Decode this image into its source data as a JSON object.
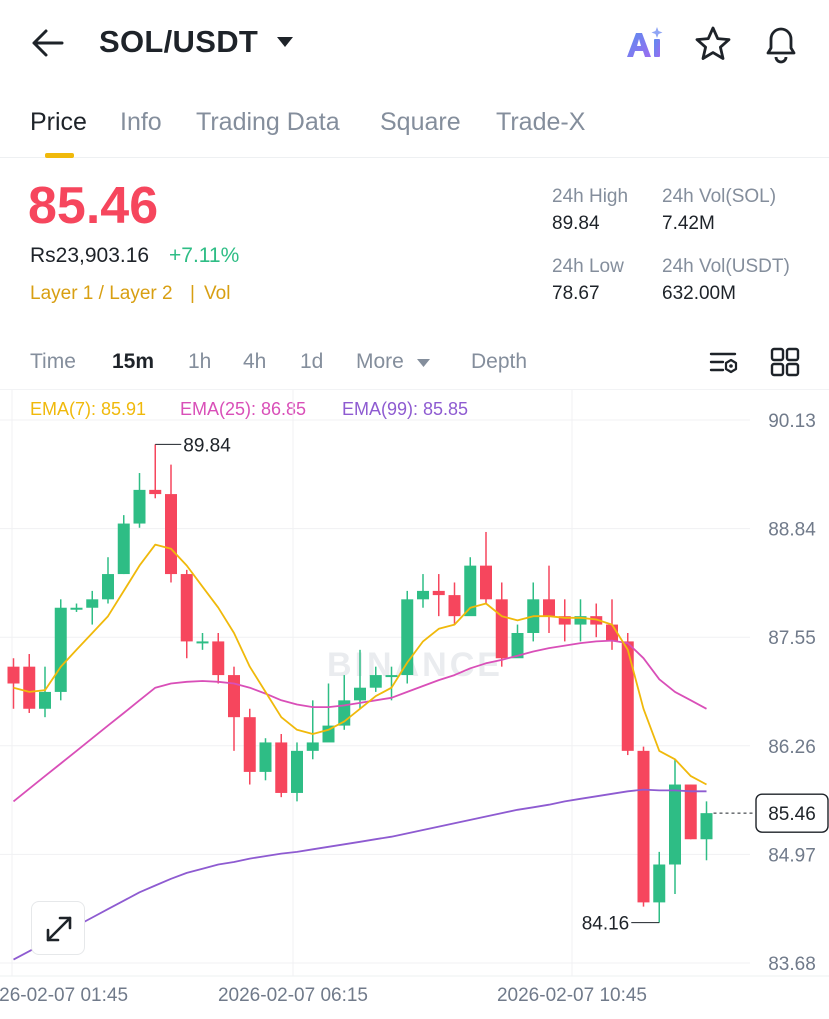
{
  "header": {
    "pair": "SOL/USDT",
    "icons": [
      "arrow-left-icon",
      "caret-down-icon",
      "ai-icon",
      "star-icon",
      "bell-icon"
    ]
  },
  "tabs": [
    {
      "label": "Price",
      "active": true
    },
    {
      "label": "Info",
      "active": false
    },
    {
      "label": "Trading Data",
      "active": false
    },
    {
      "label": "Square",
      "active": false
    },
    {
      "label": "Trade-X",
      "active": false
    }
  ],
  "price": {
    "last": "85.46",
    "fiat": "Rs23,903.16",
    "change": "+7.11%",
    "tag_layer": "Layer 1 / Layer 2",
    "tag_sep": "|",
    "tag_vol": "Vol"
  },
  "stats": {
    "high_label": "24h High",
    "high_value": "89.84",
    "vol_base_label": "24h Vol(SOL)",
    "vol_base_value": "7.42M",
    "low_label": "24h Low",
    "low_value": "78.67",
    "vol_quote_label": "24h Vol(USDT)",
    "vol_quote_value": "632.00M"
  },
  "intervals": [
    {
      "label": "Time",
      "active": false
    },
    {
      "label": "15m",
      "active": true
    },
    {
      "label": "1h",
      "active": false
    },
    {
      "label": "4h",
      "active": false
    },
    {
      "label": "1d",
      "active": false
    },
    {
      "label": "More",
      "active": false
    },
    {
      "label": "Depth",
      "active": false
    }
  ],
  "ema": {
    "ema7": "EMA(7): 85.91",
    "ema25": "EMA(25): 86.85",
    "ema99": "EMA(99): 85.85"
  },
  "colors": {
    "up": "#2ebd85",
    "down": "#f6465d",
    "accent": "#f0b90b",
    "ema7": "#f0b90b",
    "ema25": "#d94fb8",
    "ema99": "#8e5bd1",
    "ai": "#7b68ee"
  },
  "chart_data": {
    "type": "candlestick",
    "interval": "15m",
    "y_ticks": [
      "90.13",
      "88.84",
      "87.55",
      "86.26",
      "84.97",
      "83.68"
    ],
    "y_values": [
      90.13,
      88.84,
      87.55,
      86.26,
      84.97,
      83.68
    ],
    "ylim": [
      83.68,
      90.13
    ],
    "x_ticks": [
      "2026-02-07 01:45",
      "2026-02-07 06:15",
      "2026-02-07 10:45"
    ],
    "high_marker": "89.84",
    "low_marker": "84.16",
    "last_marker": "85.46",
    "watermark": "BINANCE",
    "candles": [
      [
        87.2,
        87.0,
        87.3,
        86.7
      ],
      [
        87.2,
        86.7,
        87.35,
        86.65
      ],
      [
        86.7,
        86.9,
        87.2,
        86.6
      ],
      [
        86.9,
        87.9,
        88.0,
        86.8
      ],
      [
        87.9,
        87.9,
        87.95,
        87.85
      ],
      [
        87.9,
        88.0,
        88.1,
        87.7
      ],
      [
        88.0,
        88.3,
        88.5,
        87.95
      ],
      [
        88.3,
        88.9,
        89.0,
        88.3
      ],
      [
        88.9,
        89.3,
        89.5,
        88.85
      ],
      [
        89.3,
        89.25,
        89.84,
        89.2
      ],
      [
        89.25,
        88.3,
        89.6,
        88.2
      ],
      [
        88.3,
        87.5,
        88.35,
        87.3
      ],
      [
        87.5,
        87.5,
        87.6,
        87.4
      ],
      [
        87.5,
        87.1,
        87.6,
        87.0
      ],
      [
        87.1,
        86.6,
        87.2,
        86.2
      ],
      [
        86.6,
        85.95,
        86.7,
        85.8
      ],
      [
        85.95,
        86.3,
        86.35,
        85.85
      ],
      [
        86.3,
        85.7,
        86.4,
        85.65
      ],
      [
        85.7,
        86.2,
        86.3,
        85.6
      ],
      [
        86.2,
        86.3,
        86.8,
        86.1
      ],
      [
        86.3,
        86.5,
        87.0,
        86.35
      ],
      [
        86.5,
        86.8,
        87.1,
        86.45
      ],
      [
        86.8,
        86.95,
        87.4,
        86.7
      ],
      [
        86.95,
        87.1,
        87.2,
        86.9
      ],
      [
        87.1,
        87.1,
        87.2,
        86.8
      ],
      [
        87.1,
        88.0,
        88.1,
        87.0
      ],
      [
        88.0,
        88.1,
        88.3,
        87.9
      ],
      [
        88.1,
        88.05,
        88.3,
        87.8
      ],
      [
        88.05,
        87.8,
        88.2,
        87.7
      ],
      [
        87.8,
        88.4,
        88.5,
        87.9
      ],
      [
        88.4,
        88.0,
        88.8,
        87.95
      ],
      [
        88.0,
        87.3,
        88.2,
        87.2
      ],
      [
        87.3,
        87.6,
        87.7,
        87.35
      ],
      [
        87.6,
        88.0,
        88.2,
        87.5
      ],
      [
        88.0,
        87.8,
        88.4,
        87.6
      ],
      [
        87.8,
        87.7,
        88.0,
        87.5
      ],
      [
        87.7,
        87.8,
        88.0,
        87.5
      ],
      [
        87.8,
        87.7,
        87.95,
        87.55
      ],
      [
        87.7,
        87.5,
        88.0,
        87.4
      ],
      [
        87.5,
        86.2,
        87.6,
        86.15
      ],
      [
        86.2,
        84.4,
        86.25,
        84.35
      ],
      [
        84.4,
        84.85,
        85.0,
        84.16
      ],
      [
        84.85,
        85.8,
        86.1,
        84.5
      ],
      [
        85.8,
        85.15,
        85.8,
        85.15
      ],
      [
        85.15,
        85.46,
        85.6,
        84.9
      ]
    ],
    "ema7_series": [
      86.95,
      86.9,
      86.92,
      87.2,
      87.4,
      87.6,
      87.8,
      88.1,
      88.4,
      88.65,
      88.6,
      88.4,
      88.15,
      87.9,
      87.6,
      87.2,
      86.9,
      86.6,
      86.45,
      86.4,
      86.45,
      86.55,
      86.7,
      86.85,
      86.95,
      87.25,
      87.5,
      87.65,
      87.7,
      87.9,
      87.95,
      87.8,
      87.75,
      87.8,
      87.8,
      87.78,
      87.78,
      87.76,
      87.7,
      87.4,
      86.7,
      86.2,
      86.1,
      85.9,
      85.8
    ],
    "ema25_series": [
      85.6,
      85.75,
      85.9,
      86.05,
      86.2,
      86.35,
      86.5,
      86.65,
      86.8,
      86.95,
      87.0,
      87.02,
      87.03,
      87.02,
      87.0,
      86.95,
      86.88,
      86.8,
      86.75,
      86.72,
      86.72,
      86.74,
      86.77,
      86.8,
      86.83,
      86.9,
      86.97,
      87.04,
      87.1,
      87.18,
      87.24,
      87.28,
      87.33,
      87.38,
      87.42,
      87.45,
      87.48,
      87.5,
      87.51,
      87.48,
      87.3,
      87.05,
      86.9,
      86.8,
      86.7
    ],
    "ema99_series": [
      83.72,
      83.82,
      83.92,
      84.02,
      84.12,
      84.22,
      84.32,
      84.42,
      84.52,
      84.6,
      84.68,
      84.75,
      84.8,
      84.85,
      84.88,
      84.92,
      84.95,
      84.98,
      85.0,
      85.03,
      85.06,
      85.09,
      85.12,
      85.15,
      85.18,
      85.22,
      85.26,
      85.3,
      85.34,
      85.38,
      85.42,
      85.46,
      85.5,
      85.53,
      85.56,
      85.6,
      85.63,
      85.66,
      85.69,
      85.72,
      85.74,
      85.73,
      85.73,
      85.72,
      85.72
    ]
  }
}
